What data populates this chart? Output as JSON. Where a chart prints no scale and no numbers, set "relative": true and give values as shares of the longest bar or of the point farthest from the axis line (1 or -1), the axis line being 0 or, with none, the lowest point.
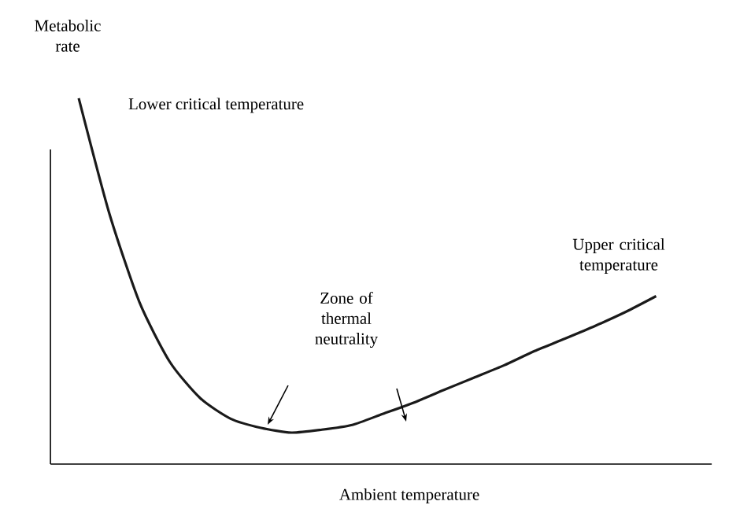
{
  "chart_data": {
    "type": "line",
    "relative": true,
    "ylabel": "Metabolic rate",
    "xlabel": "Ambient temperature",
    "color": "#1a1a1a",
    "marker": "none",
    "line_style": "solid",
    "categories": [
      null,
      null,
      null,
      null,
      null,
      null,
      null,
      null,
      null,
      null,
      null,
      null,
      null,
      null,
      null,
      null,
      null,
      null,
      null,
      null
    ],
    "values": [
      1.0,
      0.687,
      0.442,
      0.279,
      0.18,
      0.124,
      0.099,
      0.086,
      0.094,
      0.107,
      0.137,
      0.167,
      0.202,
      0.236,
      0.27,
      0.309,
      0.343,
      0.378,
      0.416,
      0.459
    ],
    "annotations": [
      "Lower critical temperature",
      "Zone of thermal neutrality",
      "Upper critical temperature"
    ]
  }
}
